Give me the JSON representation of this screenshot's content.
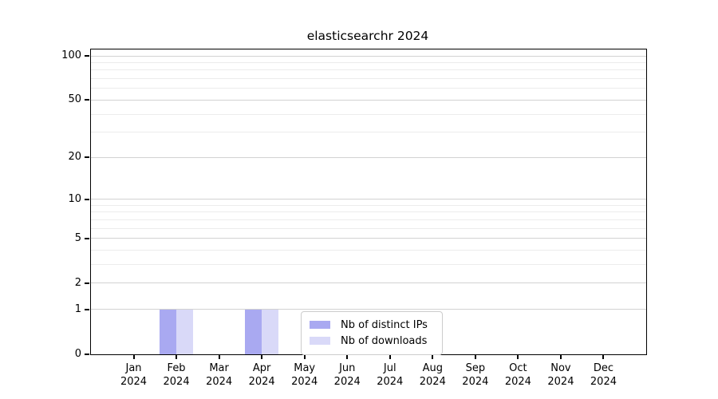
{
  "title": "elasticsearchr 2024",
  "chart_data": {
    "type": "bar",
    "title": "elasticsearchr 2024",
    "categories": [
      "Jan",
      "Feb",
      "Mar",
      "Apr",
      "May",
      "Jun",
      "Jul",
      "Aug",
      "Sep",
      "Oct",
      "Nov",
      "Dec"
    ],
    "year": "2024",
    "series": [
      {
        "name": "Nb of distinct IPs",
        "color": "#a9a9f1",
        "values": [
          0,
          1,
          0,
          1,
          0,
          0,
          0,
          0,
          0,
          0,
          0,
          0
        ]
      },
      {
        "name": "Nb of downloads",
        "color": "#d9d9f8",
        "values": [
          0,
          1,
          0,
          1,
          0,
          0,
          0,
          0,
          0,
          0,
          0,
          0
        ]
      }
    ],
    "xlabel": "",
    "ylabel": "",
    "scale": "log1p",
    "ylim": [
      0,
      110.5
    ],
    "y_ticks": [
      0,
      1,
      2,
      5,
      10,
      20,
      50,
      100
    ],
    "y_minor_gridlines": [
      3,
      4,
      6,
      7,
      8,
      9,
      30,
      40,
      60,
      70,
      80,
      90
    ],
    "grid": true,
    "legend_position": "lower center",
    "colors": {
      "frame": "#000000",
      "grid_major": "#d2d2d2",
      "grid_minor": "#ececec",
      "background": "#ffffff"
    }
  }
}
